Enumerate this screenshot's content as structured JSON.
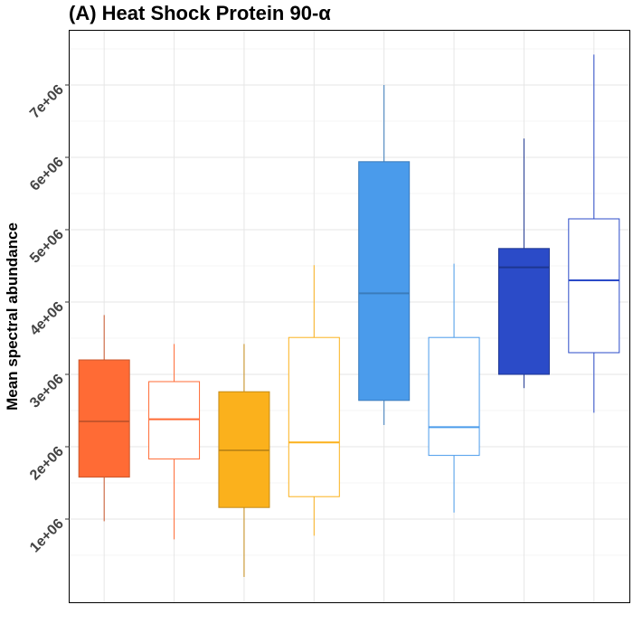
{
  "chart_data": {
    "type": "boxplot",
    "title": "(A) Heat Shock Protein 90-α",
    "xlabel": "",
    "ylabel": "Mean spectral abundance",
    "ylim": [
      0,
      7800000
    ],
    "y_ticks": [
      1000000,
      2000000,
      3000000,
      4000000,
      5000000,
      6000000,
      7000000
    ],
    "y_tick_labels": [
      "1e+06",
      "2e+06",
      "3e+06",
      "4e+06",
      "5e+06",
      "6e+06",
      "7e+06"
    ],
    "grid": true,
    "legend": "none",
    "boxes": [
      {
        "min": 970000,
        "q1": 1580000,
        "median": 2350000,
        "q3": 3200000,
        "max": 3820000,
        "filled": true,
        "color": "#FF6B35",
        "line": "#C8552B"
      },
      {
        "min": 720000,
        "q1": 1830000,
        "median": 2380000,
        "q3": 2900000,
        "max": 3420000,
        "filled": false,
        "color": "#FF6B35",
        "line": "#FF6B35"
      },
      {
        "min": 200000,
        "q1": 1160000,
        "median": 1950000,
        "q3": 2760000,
        "max": 3420000,
        "filled": true,
        "color": "#FBB11C",
        "line": "#C48A16"
      },
      {
        "min": 770000,
        "q1": 1310000,
        "median": 2060000,
        "q3": 3510000,
        "max": 4510000,
        "filled": false,
        "color": "#FBB11C",
        "line": "#FBB11C"
      },
      {
        "min": 2300000,
        "q1": 2640000,
        "median": 4120000,
        "q3": 5940000,
        "max": 7000000,
        "filled": true,
        "color": "#4A9BEB",
        "line": "#3A7BBB"
      },
      {
        "min": 1090000,
        "q1": 1880000,
        "median": 2270000,
        "q3": 3510000,
        "max": 4530000,
        "filled": false,
        "color": "#4A9BEB",
        "line": "#4A9BEB"
      },
      {
        "min": 2810000,
        "q1": 3000000,
        "median": 4480000,
        "q3": 4740000,
        "max": 6260000,
        "filled": true,
        "color": "#2B4BC8",
        "line": "#1E3690"
      },
      {
        "min": 2470000,
        "q1": 3300000,
        "median": 4300000,
        "q3": 5150000,
        "max": 7420000,
        "filled": false,
        "color": "#2B4BC8",
        "line": "#2B4BC8"
      }
    ]
  }
}
